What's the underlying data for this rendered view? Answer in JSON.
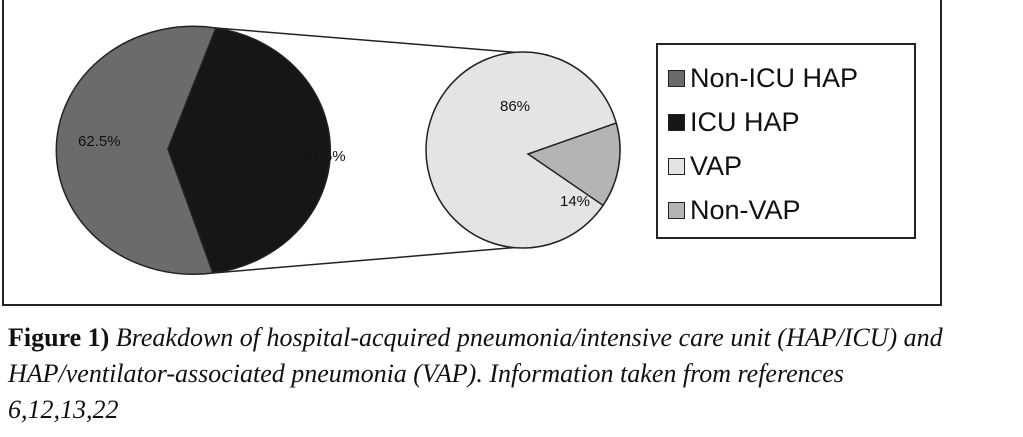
{
  "colors": {
    "non_icu_hap": "#6b6b6b",
    "icu_hap": "#161616",
    "vap": "#e4e4e4",
    "non_vap": "#b4b4b4",
    "stroke": "#222222"
  },
  "chart_data": [
    {
      "type": "pie",
      "title": "",
      "slices": [
        {
          "label": "Non-ICU HAP",
          "value": 62.5,
          "value_label": "62.5%",
          "color": "#6b6b6b"
        },
        {
          "label": "ICU HAP",
          "value": 37.5,
          "value_label": "37.5%",
          "color": "#161616"
        }
      ]
    },
    {
      "type": "pie",
      "title": "",
      "slices": [
        {
          "label": "VAP",
          "value": 86,
          "value_label": "86%",
          "color": "#e4e4e4"
        },
        {
          "label": "Non-VAP",
          "value": 14,
          "value_label": "14%",
          "color": "#b4b4b4"
        }
      ]
    }
  ],
  "legend": {
    "items": [
      {
        "label": "Non-ICU HAP",
        "color": "#6b6b6b"
      },
      {
        "label": "ICU HAP",
        "color": "#161616"
      },
      {
        "label": "VAP",
        "color": "#e4e4e4"
      },
      {
        "label": "Non-VAP",
        "color": "#b4b4b4"
      }
    ]
  },
  "caption": {
    "label": "Figure 1)",
    "text": "Breakdown of hospital-acquired pneumonia/intensive care unit (HAP/ICU) and HAP/ventilator-associated pneumonia (VAP). Information taken from references 6,12,13,22"
  }
}
